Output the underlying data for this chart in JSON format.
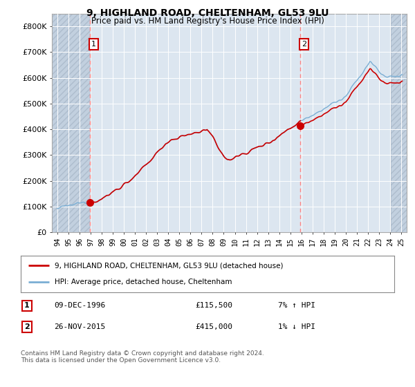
{
  "title": "9, HIGHLAND ROAD, CHELTENHAM, GL53 9LU",
  "subtitle": "Price paid vs. HM Land Registry's House Price Index (HPI)",
  "legend_label_red": "9, HIGHLAND ROAD, CHELTENHAM, GL53 9LU (detached house)",
  "legend_label_blue": "HPI: Average price, detached house, Cheltenham",
  "annotation1_date": "09-DEC-1996",
  "annotation1_price": "£115,500",
  "annotation1_hpi": "7% ↑ HPI",
  "annotation2_date": "26-NOV-2015",
  "annotation2_price": "£415,000",
  "annotation2_hpi": "1% ↓ HPI",
  "footer": "Contains HM Land Registry data © Crown copyright and database right 2024.\nThis data is licensed under the Open Government Licence v3.0.",
  "ylim": [
    0,
    850000
  ],
  "yticks": [
    0,
    100000,
    200000,
    300000,
    400000,
    500000,
    600000,
    700000,
    800000
  ],
  "ytick_labels": [
    "£0",
    "£100K",
    "£200K",
    "£300K",
    "£400K",
    "£500K",
    "£600K",
    "£700K",
    "£800K"
  ],
  "plot_bg_color": "#dce6f0",
  "hatch_color": "#b8c8d8",
  "grid_color": "#ffffff",
  "red_color": "#cc0000",
  "blue_color": "#7aaed4",
  "vline_color": "#ff8888",
  "purchase1_x": 1996.917,
  "purchase1_y": 115500,
  "purchase2_x": 2015.875,
  "purchase2_y": 415000,
  "xmin": 1993.5,
  "xmax": 2025.5
}
